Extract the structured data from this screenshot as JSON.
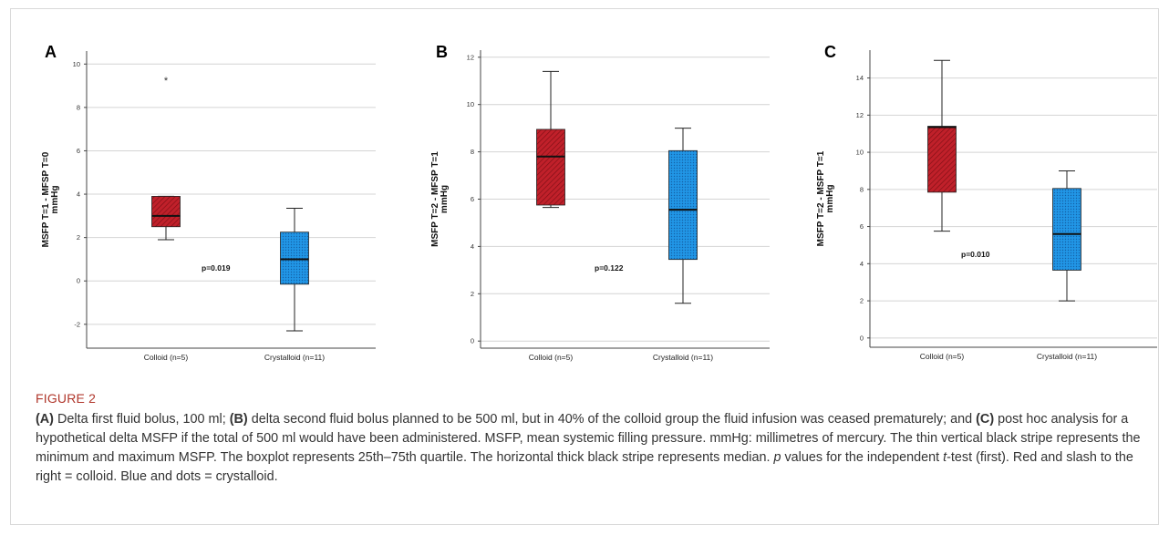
{
  "chart_data": [
    {
      "type": "boxplot",
      "panel_label": "A",
      "ylabel": "MSFP T=1 - MFSP T=0\nmmHg",
      "ylim": [
        -3.1,
        10.6
      ],
      "yticks": [
        -2,
        0,
        2,
        4,
        6,
        8,
        10
      ],
      "categories": [
        "Colloid (n=5)",
        "Crystalloid (n=11)"
      ],
      "boxes": [
        {
          "min": 1.9,
          "q1": 2.5,
          "median": 3.0,
          "q3": 3.9,
          "max": 3.9,
          "outliers": [
            9.3
          ],
          "color": "#c0202a",
          "pattern": "slash-right"
        },
        {
          "min": -2.3,
          "q1": -0.15,
          "median": 1.0,
          "q3": 2.25,
          "max": 3.35,
          "outliers": [],
          "color": "#1f8fe0",
          "pattern": "dots"
        }
      ],
      "annotation": "p=0.019",
      "grid": true
    },
    {
      "type": "boxplot",
      "panel_label": "B",
      "ylabel": "MSFP T=2 - MFSP T=1\nmmHg",
      "ylim": [
        -0.3,
        12.3
      ],
      "yticks": [
        0,
        2,
        4,
        6,
        8,
        10,
        12
      ],
      "categories": [
        "Colloid (n=5)",
        "Crystalloid (n=11)"
      ],
      "boxes": [
        {
          "min": 5.65,
          "q1": 5.75,
          "median": 7.8,
          "q3": 8.95,
          "max": 11.4,
          "outliers": [],
          "color": "#c0202a",
          "pattern": "slash-right"
        },
        {
          "min": 1.6,
          "q1": 3.45,
          "median": 5.55,
          "q3": 8.05,
          "max": 9.0,
          "outliers": [],
          "color": "#1f8fe0",
          "pattern": "dots"
        }
      ],
      "annotation": "p=0.122",
      "grid": true
    },
    {
      "type": "boxplot",
      "panel_label": "C",
      "ylabel": "MSFP T=2 - MSFP T=1\nmmHg",
      "ylim": [
        -0.5,
        15.5
      ],
      "yticks": [
        0,
        2,
        4,
        6,
        8,
        10,
        12,
        14
      ],
      "categories": [
        "Colloid (n=5)",
        "Crystalloid (n=11)"
      ],
      "boxes": [
        {
          "min": 5.75,
          "q1": 7.85,
          "median": 11.35,
          "q3": 11.4,
          "max": 14.95,
          "outliers": [],
          "color": "#c0202a",
          "pattern": "slash-right"
        },
        {
          "min": 2.0,
          "q1": 3.65,
          "median": 5.6,
          "q3": 8.05,
          "max": 9.0,
          "outliers": [],
          "color": "#1f8fe0",
          "pattern": "dots"
        }
      ],
      "annotation": "p=0.010",
      "grid": true
    }
  ],
  "caption": {
    "label": "FIGURE 2",
    "parts": [
      {
        "t": "(A)",
        "s": "b"
      },
      {
        "t": " Delta first fluid bolus, 100 ml; "
      },
      {
        "t": "(B)",
        "s": "b"
      },
      {
        "t": " delta second fluid bolus planned to be 500 ml, but in 40% of the colloid group the fluid infusion was ceased prematurely; and "
      },
      {
        "t": "(C)",
        "s": "b"
      },
      {
        "t": " post hoc analysis for a hypothetical delta MSFP if the total of 500 ml would have been administered. MSFP, mean systemic filling pressure. mmHg: millimetres of mercury. The thin vertical black stripe represents the minimum and maximum MSFP. The boxplot represents 25th–75th quartile. The horizontal thick black stripe represents median. "
      },
      {
        "t": "p",
        "s": "i"
      },
      {
        "t": " values for the independent "
      },
      {
        "t": "t",
        "s": "i"
      },
      {
        "t": "-test (first). Red and slash to the right = colloid. Blue and dots = crystalloid."
      }
    ]
  }
}
